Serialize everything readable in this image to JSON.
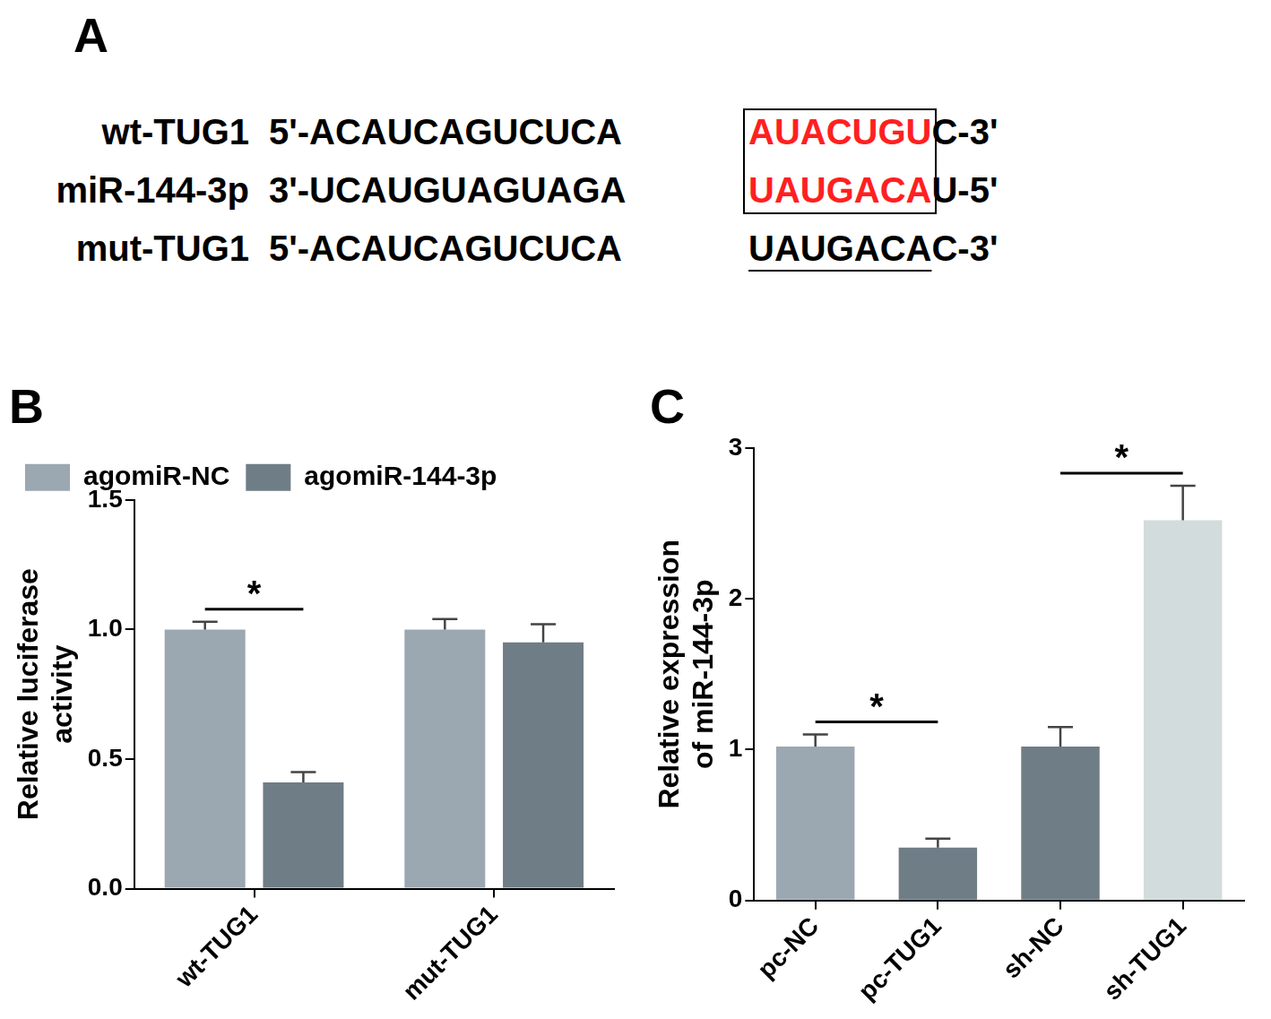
{
  "sequence_panel": {
    "title": "A",
    "rows": [
      {
        "name": "wt-TUG1",
        "prefix": "5'-",
        "before": "ACAUCAGUCUCA",
        "site": "AUACUGU",
        "after": "C",
        "suffix": "-3'",
        "site_color": "#ff2020"
      },
      {
        "name": "miR-144-3p",
        "prefix": "3'-",
        "before": "UCAUGUAGUAGA",
        "site": "UAUGACA",
        "after": "U",
        "suffix": "-5'",
        "site_color": "#ff2020"
      },
      {
        "name": "mut-TUG1",
        "prefix": "5'-",
        "before": "ACAUCAGUCUCA",
        "site": "UAUGACA",
        "after": "C",
        "suffix": "-3'",
        "underline": true
      }
    ]
  },
  "chart_data": [
    {
      "type": "bar",
      "title": "B",
      "y_label": [
        "Relative luciferase",
        "activity"
      ],
      "categories": [
        "wt-TUG1",
        "mut-TUG1"
      ],
      "series": [
        {
          "name": "agomiR-NC",
          "color": "#9ba7b1",
          "values": [
            1.0,
            1.0
          ],
          "errors": [
            0.03,
            0.04
          ]
        },
        {
          "name": "agomiR-144-3p",
          "color": "#6f7d86",
          "values": [
            0.41,
            0.95
          ],
          "errors": [
            0.04,
            0.07
          ]
        }
      ],
      "ylim": [
        0,
        1.5
      ],
      "yticks": [
        {
          "value": 0,
          "label": "0.0"
        },
        {
          "value": 0.5,
          "label": "0.5"
        },
        {
          "value": 1.0,
          "label": "1.0"
        },
        {
          "value": 1.5,
          "label": "1.5"
        }
      ],
      "grid": false,
      "legend": "top-left",
      "significance": [
        {
          "category": "wt-TUG1",
          "series": [
            "agomiR-NC",
            "agomiR-144-3p"
          ],
          "label": "*"
        }
      ]
    },
    {
      "type": "bar",
      "title": "C",
      "y_label": [
        "Relative expression",
        "of miR-144-3p"
      ],
      "categories": [
        "pc-NC",
        "pc-TUG1",
        "sh-NC",
        "sh-TUG1"
      ],
      "values": [
        1.02,
        0.35,
        1.02,
        2.52
      ],
      "errors": [
        0.08,
        0.06,
        0.13,
        0.23
      ],
      "colors": [
        "#9ba7b1",
        "#6f7d86",
        "#6f7d86",
        "#d3dcdc"
      ],
      "ylim": [
        0,
        3
      ],
      "yticks": [
        0,
        1,
        2,
        3
      ],
      "grid": false,
      "significance": [
        {
          "categories": [
            "pc-NC",
            "pc-TUG1"
          ],
          "label": "*"
        },
        {
          "categories": [
            "sh-NC",
            "sh-TUG1"
          ],
          "label": "*"
        }
      ]
    }
  ]
}
